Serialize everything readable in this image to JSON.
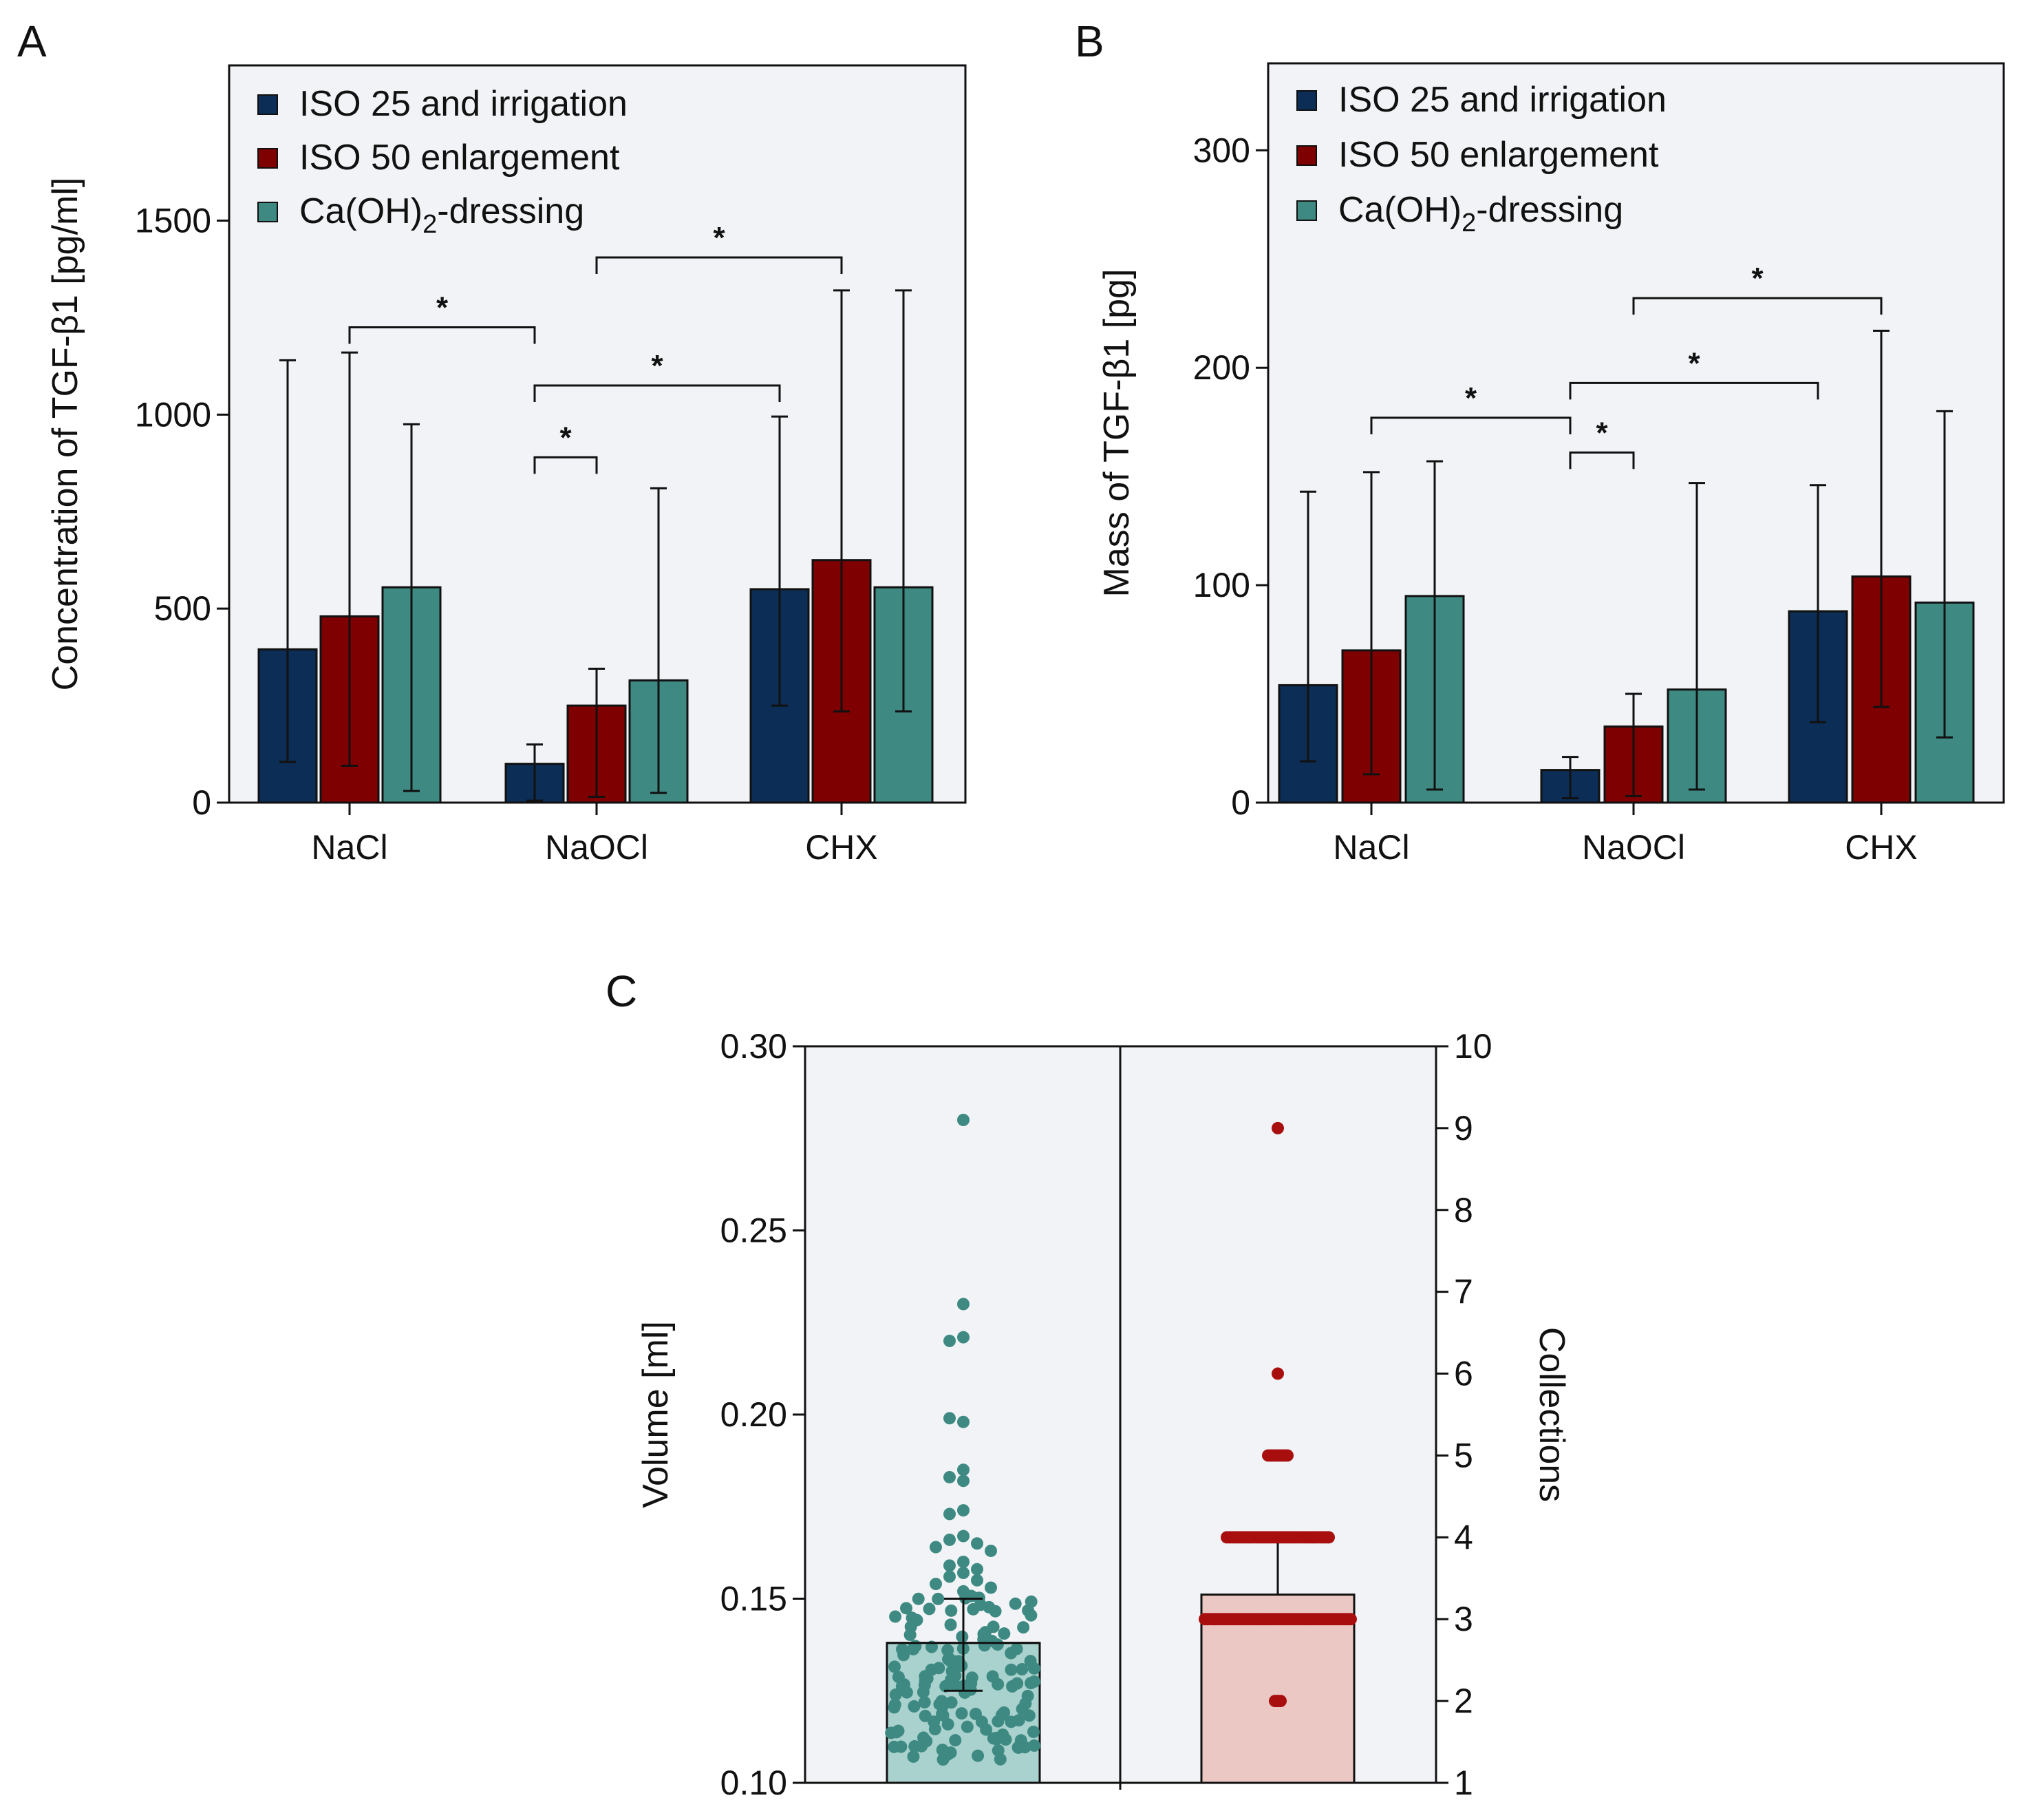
{
  "colors": {
    "iso25": "#0c2d55",
    "iso50": "#7f0000",
    "caoh": "#3e8a83",
    "panel_bg": "#f1f3f6",
    "volume_fill": "#a9d1cd",
    "volume_dot": "#3e8a83",
    "collections_fill": "#ecc8c4",
    "collections_dot": "#a80e0e"
  },
  "chart_data": [
    {
      "panel": "A",
      "type": "bar",
      "categories": [
        "NaCl",
        "NaOCl",
        "CHX"
      ],
      "series": [
        {
          "name": "ISO 25 and irrigation",
          "color_key": "iso25",
          "values": [
            395,
            100,
            550
          ],
          "err_low": [
            105,
            5,
            250
          ],
          "err_high": [
            1140,
            150,
            995
          ]
        },
        {
          "name": "ISO 50 enlargement",
          "color_key": "iso50",
          "values": [
            480,
            250,
            625
          ],
          "err_low": [
            95,
            15,
            235
          ],
          "err_high": [
            1160,
            345,
            1320
          ]
        },
        {
          "name": "Ca(OH)",
          "name_sub": "2",
          "name_suffix": "-dressing",
          "color_key": "caoh",
          "values": [
            555,
            315,
            555
          ],
          "err_low": [
            30,
            25,
            235
          ],
          "err_high": [
            975,
            810,
            1320
          ]
        }
      ],
      "ylabel": "Concentration of TGF-β1 [pg/ml]",
      "ylim": [
        0,
        1900
      ],
      "yticks": [
        0,
        500,
        1000,
        1500
      ],
      "significance": [
        {
          "from_group": 0,
          "from_series": 1,
          "to_group": 1,
          "to_series": 0,
          "y": 1225,
          "label": "*"
        },
        {
          "from_group": 1,
          "from_series": 0,
          "to_group": 1,
          "to_series": 1,
          "y": 890,
          "label": "*"
        },
        {
          "from_group": 1,
          "from_series": 0,
          "to_group": 2,
          "to_series": 0,
          "y": 1075,
          "label": "*"
        },
        {
          "from_group": 1,
          "from_series": 1,
          "to_group": 2,
          "to_series": 1,
          "y": 1405,
          "label": "*"
        }
      ],
      "legend": "top-left"
    },
    {
      "panel": "B",
      "type": "bar",
      "categories": [
        "NaCl",
        "NaOCl",
        "CHX"
      ],
      "series": [
        {
          "name": "ISO 25 and irrigation",
          "color_key": "iso25",
          "values": [
            54,
            15,
            88
          ],
          "err_low": [
            19,
            2,
            37
          ],
          "err_high": [
            143,
            21,
            146
          ]
        },
        {
          "name": "ISO 50 enlargement",
          "color_key": "iso50",
          "values": [
            70,
            35,
            104
          ],
          "err_low": [
            13,
            3,
            44
          ],
          "err_high": [
            152,
            50,
            217
          ]
        },
        {
          "name": "Ca(OH)",
          "name_sub": "2",
          "name_suffix": "-dressing",
          "color_key": "caoh",
          "values": [
            95,
            52,
            92
          ],
          "err_low": [
            6,
            6,
            30
          ],
          "err_high": [
            157,
            147,
            180
          ]
        }
      ],
      "ylabel": "Mass of TGF-β1 [pg]",
      "ylim": [
        0,
        340
      ],
      "yticks": [
        0,
        100,
        200,
        300
      ],
      "significance": [
        {
          "from_group": 0,
          "from_series": 1,
          "to_group": 1,
          "to_series": 0,
          "y": 177,
          "label": "*"
        },
        {
          "from_group": 1,
          "from_series": 0,
          "to_group": 1,
          "to_series": 1,
          "y": 161,
          "label": "*"
        },
        {
          "from_group": 1,
          "from_series": 0,
          "to_group": 2,
          "to_series": 0,
          "y": 193,
          "label": "*"
        },
        {
          "from_group": 1,
          "from_series": 1,
          "to_group": 2,
          "to_series": 1,
          "y": 232,
          "label": "*"
        }
      ],
      "legend": "top-left"
    },
    {
      "panel": "C",
      "type": "bar",
      "description_type": "bar with scatter",
      "left": {
        "ylabel": "Volume [ml]",
        "ylim": [
          0.1,
          0.3
        ],
        "yticks": [
          0.1,
          0.15,
          0.2,
          0.25,
          0.3
        ],
        "ytick_labels": [
          "0.10",
          "0.15",
          "0.20",
          "0.25",
          "0.30"
        ],
        "mean": 0.138,
        "err_low": 0.125,
        "err_high": 0.15,
        "outliers": [
          0.28,
          0.23,
          0.221,
          0.22,
          0.198,
          0.199,
          0.185,
          0.183,
          0.182,
          0.174,
          0.173,
          0.167,
          0.166,
          0.165,
          0.164,
          0.163,
          0.16,
          0.159,
          0.158,
          0.157,
          0.156,
          0.155,
          0.154,
          0.153,
          0.152
        ],
        "bulk_min": 0.106,
        "bulk_max": 0.152,
        "bulk_count": 140
      },
      "right": {
        "ylabel": "Collections",
        "ylim": [
          1,
          10
        ],
        "yticks": [
          1,
          2,
          3,
          4,
          5,
          6,
          7,
          8,
          9,
          10
        ],
        "mean": 3.3,
        "err_high": 4.0,
        "points": [
          {
            "value": 9,
            "count": 1
          },
          {
            "value": 6,
            "count": 1
          },
          {
            "value": 5,
            "count": 8
          },
          {
            "value": 4,
            "count": 38
          },
          {
            "value": 3,
            "count": 54
          },
          {
            "value": 2,
            "count": 3
          }
        ]
      }
    }
  ],
  "panel_labels": [
    "A",
    "B",
    "C"
  ]
}
